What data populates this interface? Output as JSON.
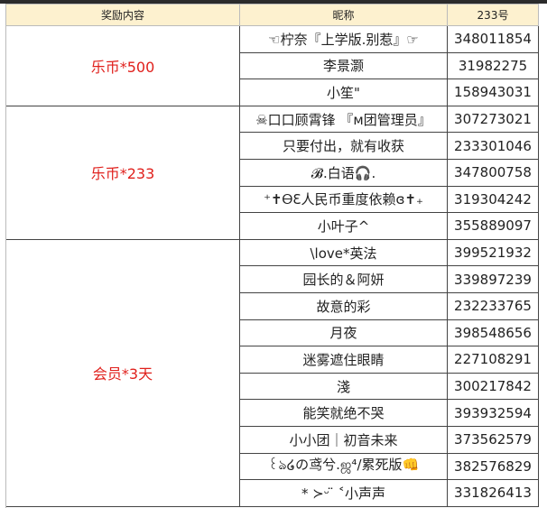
{
  "headers": {
    "reward": "奖励内容",
    "nickname": "昵称",
    "id": "233号"
  },
  "groups": [
    {
      "reward": "乐币*500",
      "rows": [
        [
          "☜柠奈『上学版.别惹』☞",
          "348011854"
        ],
        [
          "李景灏",
          "31982275"
        ],
        [
          "小笙\"",
          "158943031"
        ]
      ]
    },
    {
      "reward": "乐币*233",
      "rows": [
        [
          "☠口口顾霄锋 『ᴍ团管理员』",
          "307273021"
        ],
        [
          "只要付出，就有收获",
          "233301046"
        ],
        [
          "𝓑.白语🎧.",
          "347800758"
        ],
        [
          "⁺✝ᎾƐ人民币重度依赖ɞ✝₊",
          "319304242"
        ],
        [
          "小叶子^",
          "355889097"
        ]
      ]
    },
    {
      "reward": "会员*3天",
      "rows": [
        [
          "\\love*英法",
          "399521932"
        ],
        [
          "园长的＆阿妍",
          "339897239"
        ],
        [
          "故意的彩",
          "232233765"
        ],
        [
          "月夜",
          "398548656"
        ],
        [
          "迷雾遮住眼睛",
          "227108291"
        ],
        [
          "淺",
          "300217842"
        ],
        [
          "能笑就绝不哭",
          "393932594"
        ],
        [
          "小小团｜初音未来",
          "373562579"
        ],
        [
          "꒰ঌ໒の鸢兮.ஜ⁴/累死版👊",
          "382576829"
        ],
        [
          "* ≻ᵕ ̈ ˂小声声",
          "331826413"
        ]
      ]
    }
  ]
}
